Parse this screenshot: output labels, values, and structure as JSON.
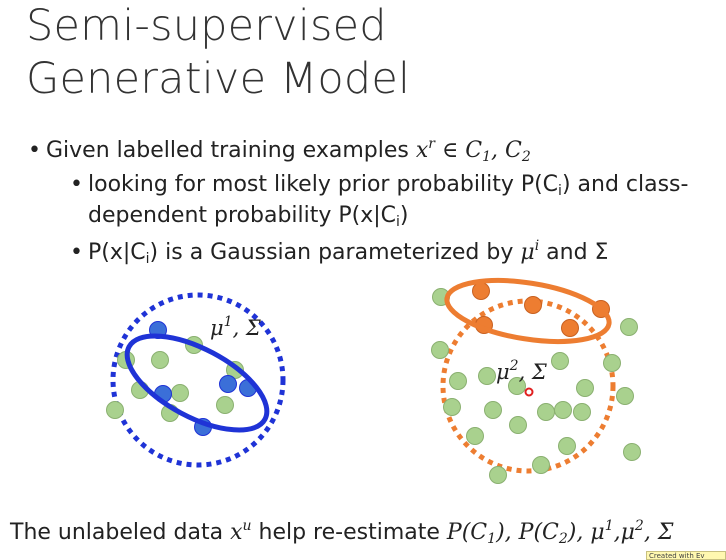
{
  "slide": {
    "title_line1": "Semi-supervised",
    "title_line2": "Generative Model",
    "bullets": [
      {
        "text": "Given labelled training examples",
        "math_var": "x",
        "math_sup": "r",
        "math_rel": " ∈ ",
        "c1": "C",
        "c1_sub": "1",
        "sep": ", ",
        "c2": "C",
        "c2_sub": "2"
      }
    ],
    "sub_bullet_1_line1_a": "looking for most likely prior probability P(C",
    "sub_bullet_1_line1_sub": "i",
    "sub_bullet_1_line1_b": ") and class-",
    "sub_bullet_1_line2_a": "dependent probability P(x|C",
    "sub_bullet_1_line2_sub": "i",
    "sub_bullet_1_line2_b": ")",
    "sub_bullet_2_a": "P(x|C",
    "sub_bullet_2_sub": "i",
    "sub_bullet_2_b": ") is a Gaussian parameterized by",
    "sub_bullet_2_mu": "μ",
    "sub_bullet_2_mu_sup": "i",
    "sub_bullet_2_and": " and Σ",
    "left_label_mu": "μ",
    "left_label_sup": "1",
    "left_label_rest": ", Σ",
    "right_label_mu": "μ",
    "right_label_sup": "2",
    "right_label_rest": ", Σ",
    "bottom_text_a": "The unlabeled data",
    "bottom_x": "x",
    "bottom_x_sup": "u",
    "bottom_text_b": " help re-estimate ",
    "bottom_p1": "P",
    "bottom_p1_inner": "(C",
    "bottom_p1_sub": "1",
    "bottom_p1_close": "), ",
    "bottom_p2": "P",
    "bottom_p2_inner": "(C",
    "bottom_p2_sub": "2",
    "bottom_p2_close": "), ",
    "bottom_mu1": "μ",
    "bottom_mu1_sup": "1",
    "bottom_comma": ",",
    "bottom_mu2": "μ",
    "bottom_mu2_sup": "2",
    "bottom_sigma": ", Σ",
    "watermark": "Created with Ev"
  },
  "colors": {
    "blue": "#1f33d6",
    "blue_point": "#3b6fd8",
    "orange": "#ed7d31",
    "green_point": "#a9d18e",
    "green_stroke": "#8ab070",
    "red_marker": "#e02020"
  }
}
